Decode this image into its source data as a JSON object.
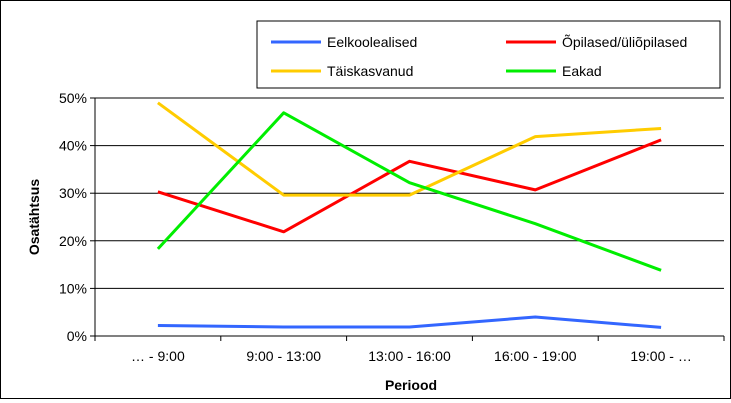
{
  "chart_data": {
    "type": "line",
    "title": "",
    "xlabel": "Periood",
    "ylabel": "Osatähtsus",
    "categories": [
      "… - 9:00",
      "9:00 - 13:00",
      "13:00 - 16:00",
      "16:00 - 19:00",
      "19:00 - …"
    ],
    "ylim": [
      0,
      50
    ],
    "yticks": [
      0,
      10,
      20,
      30,
      40,
      50
    ],
    "ytick_labels": [
      "0%",
      "10%",
      "20%",
      "30%",
      "40%",
      "50%"
    ],
    "grid": "horizontal",
    "legend_position": "top-right",
    "series": [
      {
        "name": "Eelkoolealised",
        "color": "#3366ff",
        "values": [
          2.2,
          1.9,
          1.9,
          4.0,
          1.8
        ]
      },
      {
        "name": "Õpilased/üliõpilased",
        "color": "#ff0000",
        "values": [
          30.3,
          21.9,
          36.7,
          30.7,
          41.2
        ]
      },
      {
        "name": "Täiskasvanud",
        "color": "#ffcc00",
        "values": [
          49.0,
          29.6,
          29.6,
          41.9,
          43.6
        ]
      },
      {
        "name": "Eakad",
        "color": "#00ee00",
        "values": [
          18.3,
          46.9,
          32.2,
          23.6,
          13.8
        ]
      }
    ]
  }
}
